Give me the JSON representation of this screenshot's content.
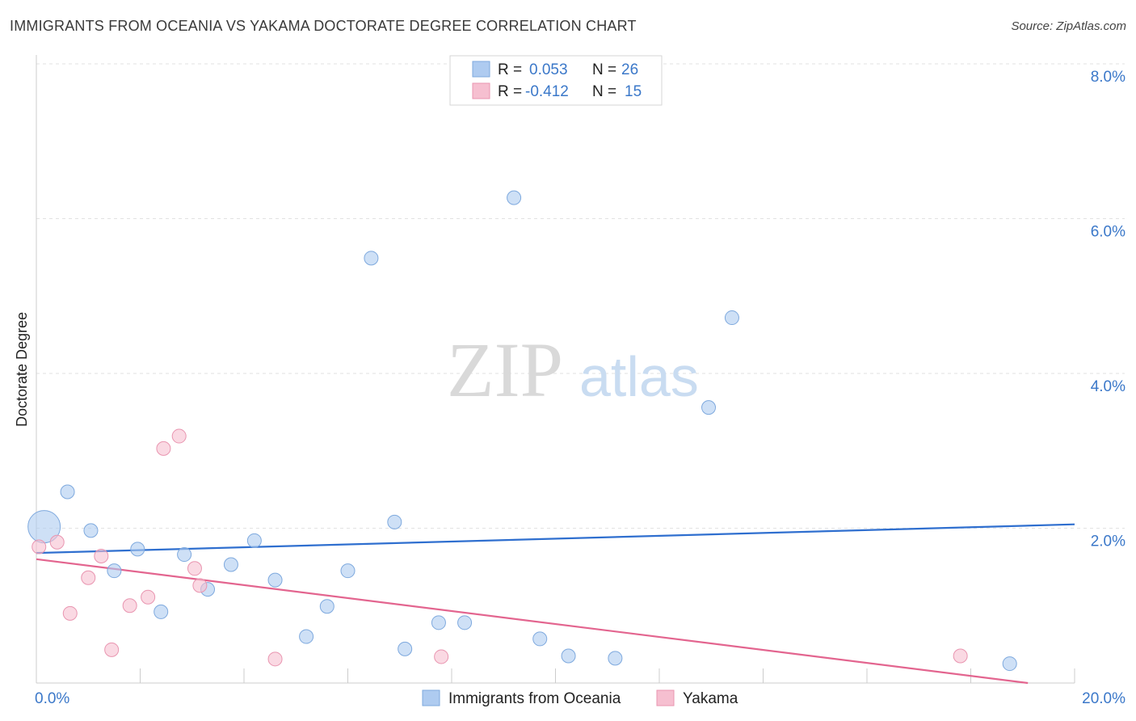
{
  "title": "IMMIGRANTS FROM OCEANIA VS YAKAMA DOCTORATE DEGREE CORRELATION CHART",
  "source": "Source: ZipAtlas.com",
  "watermark": {
    "zip": "ZIP",
    "atlas": "atlas"
  },
  "legend_top": {
    "rows": [
      {
        "r_label": "R =",
        "r_value": "0.053",
        "n_label": "N =",
        "n_value": "26",
        "color": "#aecbf0"
      },
      {
        "r_label": "R =",
        "r_value": "-0.412",
        "n_label": "N =",
        "n_value": "15",
        "color": "#f6bfd0"
      }
    ]
  },
  "legend_bottom": {
    "items": [
      {
        "label": "Immigrants from Oceania",
        "color": "#aecbf0"
      },
      {
        "label": "Yakama",
        "color": "#f6bfd0"
      }
    ]
  },
  "chart_data": {
    "type": "scatter",
    "title": "IMMIGRANTS FROM OCEANIA VS YAKAMA DOCTORATE DEGREE CORRELATION CHART",
    "xlabel": "",
    "ylabel": "Doctorate Degree",
    "xlim": [
      0,
      20
    ],
    "ylim": [
      0,
      8
    ],
    "x_tick_labels": [
      {
        "value": 0,
        "label": "0.0%"
      },
      {
        "value": 20,
        "label": "20.0%"
      }
    ],
    "y_tick_labels": [
      {
        "value": 2,
        "label": "2.0%"
      },
      {
        "value": 4,
        "label": "4.0%"
      },
      {
        "value": 6,
        "label": "6.0%"
      },
      {
        "value": 8,
        "label": "8.0%"
      }
    ],
    "grid": true,
    "series": [
      {
        "name": "Immigrants from Oceania",
        "color": "#aecbf0",
        "stroke": "#7ea9de",
        "trend_color": "#2f6fcf",
        "trend": {
          "x": [
            0,
            20
          ],
          "y": [
            1.68,
            2.05
          ]
        },
        "points": [
          {
            "x": 0.15,
            "y": 2.02,
            "big": true
          },
          {
            "x": 0.6,
            "y": 2.47
          },
          {
            "x": 1.05,
            "y": 1.97
          },
          {
            "x": 1.5,
            "y": 1.45
          },
          {
            "x": 1.95,
            "y": 1.73
          },
          {
            "x": 2.4,
            "y": 0.92
          },
          {
            "x": 2.85,
            "y": 1.66
          },
          {
            "x": 3.3,
            "y": 1.21
          },
          {
            "x": 3.75,
            "y": 1.53
          },
          {
            "x": 4.2,
            "y": 1.84
          },
          {
            "x": 4.6,
            "y": 1.33
          },
          {
            "x": 5.2,
            "y": 0.6
          },
          {
            "x": 5.6,
            "y": 0.99
          },
          {
            "x": 6.0,
            "y": 1.45
          },
          {
            "x": 6.45,
            "y": 5.49
          },
          {
            "x": 6.9,
            "y": 2.08
          },
          {
            "x": 7.1,
            "y": 0.44
          },
          {
            "x": 7.75,
            "y": 0.78
          },
          {
            "x": 8.25,
            "y": 0.78
          },
          {
            "x": 9.2,
            "y": 6.27
          },
          {
            "x": 9.7,
            "y": 0.57
          },
          {
            "x": 10.25,
            "y": 0.35
          },
          {
            "x": 11.15,
            "y": 0.32
          },
          {
            "x": 12.95,
            "y": 3.56
          },
          {
            "x": 13.4,
            "y": 4.72
          },
          {
            "x": 18.75,
            "y": 0.25
          }
        ]
      },
      {
        "name": "Yakama",
        "color": "#f6bfd0",
        "stroke": "#e995b0",
        "trend_color": "#e3658f",
        "trend": {
          "x": [
            0,
            19.1
          ],
          "y": [
            1.6,
            0.0
          ]
        },
        "points": [
          {
            "x": 0.05,
            "y": 1.76
          },
          {
            "x": 0.4,
            "y": 1.82
          },
          {
            "x": 0.65,
            "y": 0.9
          },
          {
            "x": 1.0,
            "y": 1.36
          },
          {
            "x": 1.25,
            "y": 1.64
          },
          {
            "x": 1.45,
            "y": 0.43
          },
          {
            "x": 1.8,
            "y": 1.0
          },
          {
            "x": 2.15,
            "y": 1.11
          },
          {
            "x": 2.45,
            "y": 3.03
          },
          {
            "x": 2.75,
            "y": 3.19
          },
          {
            "x": 3.05,
            "y": 1.48
          },
          {
            "x": 3.15,
            "y": 1.26
          },
          {
            "x": 4.6,
            "y": 0.31
          },
          {
            "x": 7.8,
            "y": 0.34
          },
          {
            "x": 17.8,
            "y": 0.35
          }
        ]
      }
    ]
  }
}
